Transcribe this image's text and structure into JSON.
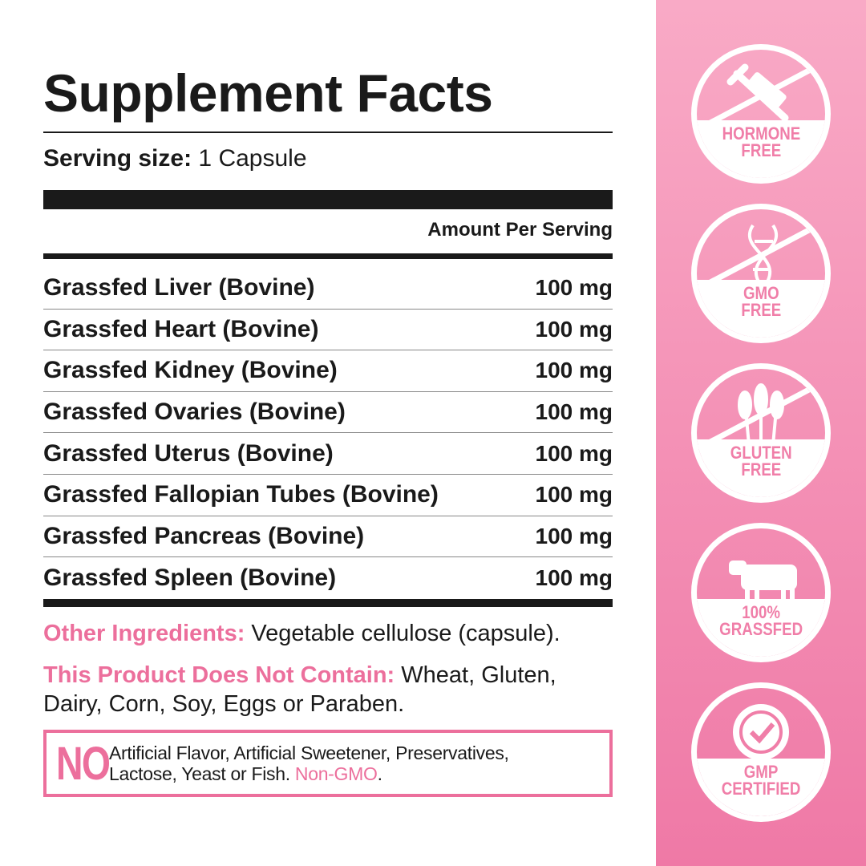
{
  "title": "Supplement Facts",
  "serving": {
    "label": "Serving size:",
    "value": "1 Capsule"
  },
  "amount_header": "Amount Per Serving",
  "ingredients": [
    {
      "name": "Grassfed Liver (Bovine)",
      "amount": "100 mg"
    },
    {
      "name": "Grassfed Heart (Bovine)",
      "amount": "100 mg"
    },
    {
      "name": "Grassfed Kidney (Bovine)",
      "amount": "100 mg"
    },
    {
      "name": "Grassfed Ovaries (Bovine)",
      "amount": "100 mg"
    },
    {
      "name": "Grassfed Uterus (Bovine)",
      "amount": "100 mg"
    },
    {
      "name": "Grassfed Fallopian Tubes (Bovine)",
      "amount": "100 mg"
    },
    {
      "name": "Grassfed Pancreas (Bovine)",
      "amount": "100 mg"
    },
    {
      "name": "Grassfed Spleen (Bovine)",
      "amount": "100 mg"
    }
  ],
  "other": {
    "label": "Other Ingredients:",
    "value": "Vegetable cellulose (capsule)."
  },
  "contain": {
    "label": "This Product Does Not Contain:",
    "value": "Wheat, Gluten, Dairy, Corn, Soy, Eggs or Paraben."
  },
  "no_box": {
    "no": "NO",
    "line1": "Artificial Flavor, Artificial Sweetener, Preservatives,",
    "line2": "Lactose, Yeast or Fish.",
    "highlight": "Non-GMO",
    "end": "."
  },
  "badges": [
    {
      "icon": "syringe-icon",
      "l1": "HORMONE",
      "l2": "FREE"
    },
    {
      "icon": "dna-icon",
      "l1": "GMO",
      "l2": "FREE"
    },
    {
      "icon": "wheat-icon",
      "l1": "GLUTEN",
      "l2": "FREE"
    },
    {
      "icon": "cow-icon",
      "l1": "100%",
      "l2": "GRASSFED"
    },
    {
      "icon": "check-seal-icon",
      "l1": "GMP",
      "l2": "CERTIFIED"
    }
  ],
  "colors": {
    "accent": "#ec6f9c",
    "panel_top": "#f9aac6",
    "panel_bottom": "#ef79a6"
  }
}
